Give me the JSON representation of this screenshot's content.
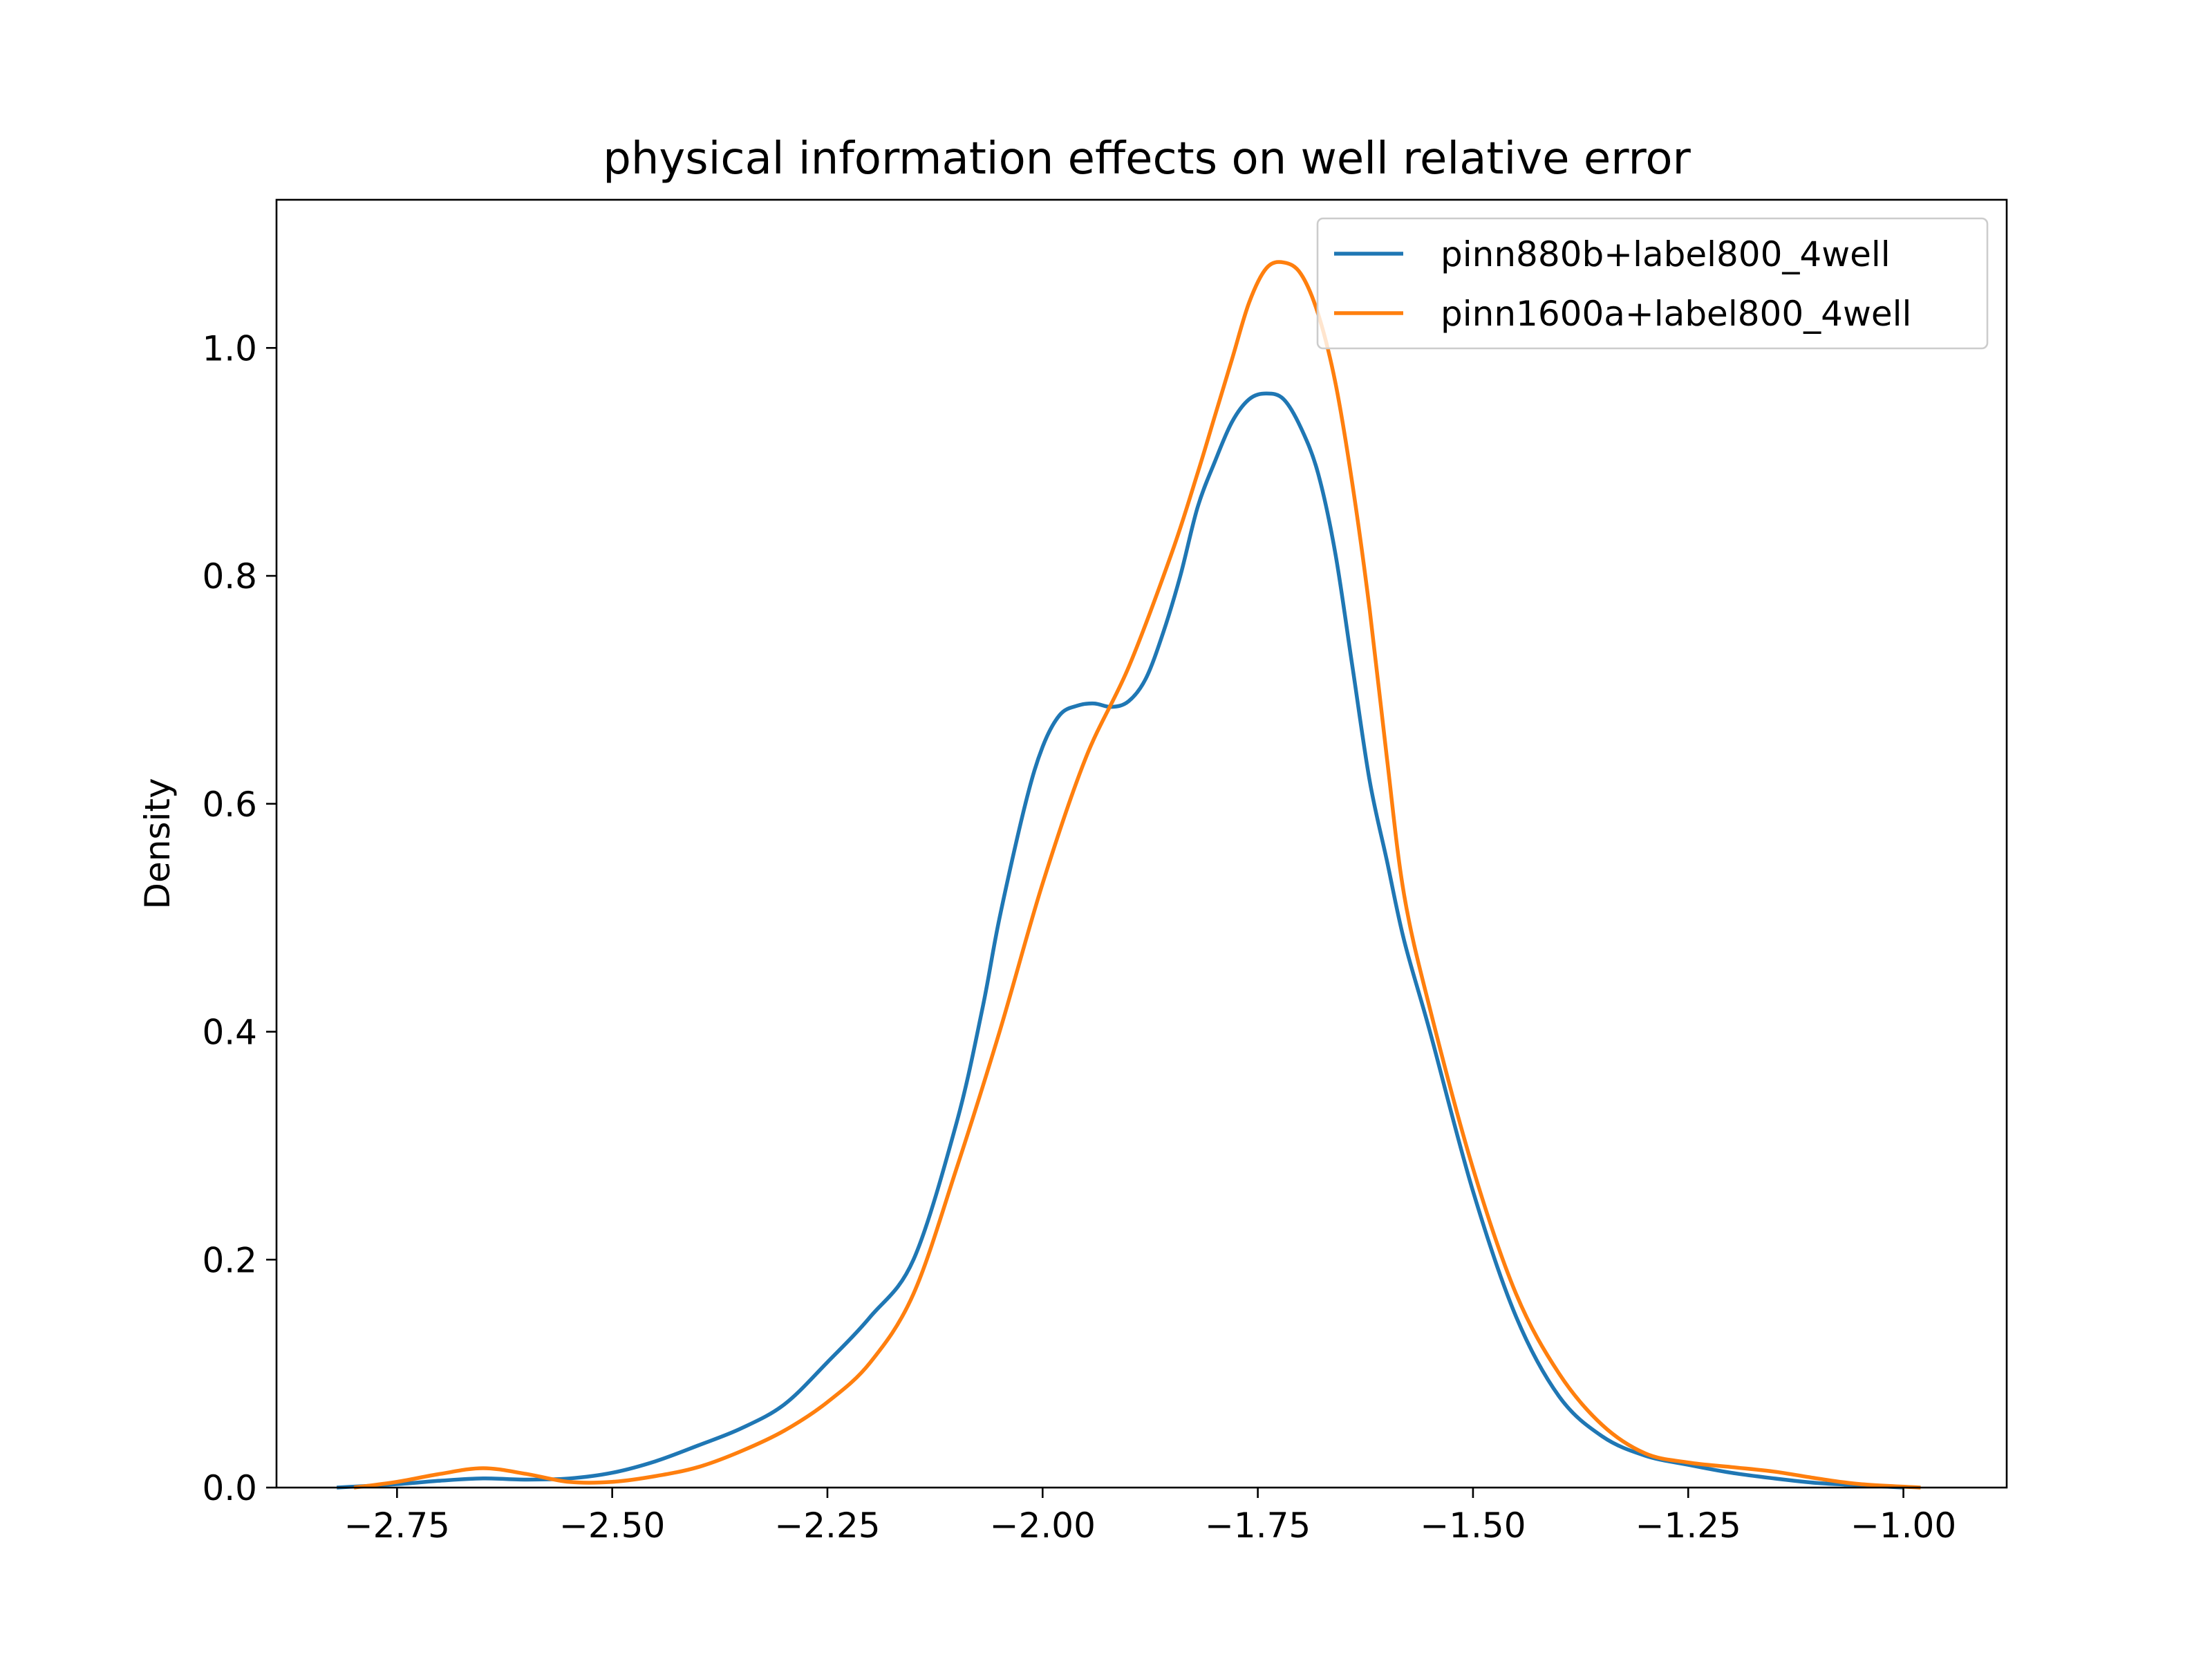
{
  "chart_data": {
    "type": "line",
    "title": "physical information effects on well relative error",
    "xlabel": "",
    "ylabel": "Density",
    "xlim": [
      -2.89,
      -0.88
    ],
    "ylim": [
      0.0,
      1.13
    ],
    "xticks": [
      -2.75,
      -2.5,
      -2.25,
      -2.0,
      -1.75,
      -1.5,
      -1.25,
      -1.0
    ],
    "xtick_labels": [
      "−2.75",
      "−2.50",
      "−2.25",
      "−2.00",
      "−1.75",
      "−1.50",
      "−1.25",
      "−1.00"
    ],
    "yticks": [
      0.0,
      0.2,
      0.4,
      0.6,
      0.8,
      1.0
    ],
    "ytick_labels": [
      "0.0",
      "0.2",
      "0.4",
      "0.6",
      "0.8",
      "1.0"
    ],
    "grid": false,
    "legend_position": "top-right",
    "series": [
      {
        "name": "pinn880b+label800_4well",
        "color": "#1f77b4",
        "x": [
          -2.82,
          -2.75,
          -2.7,
          -2.65,
          -2.6,
          -2.55,
          -2.5,
          -2.45,
          -2.4,
          -2.35,
          -2.3,
          -2.25,
          -2.2,
          -2.15,
          -2.1,
          -2.07,
          -2.05,
          -2.02,
          -2.0,
          -1.98,
          -1.96,
          -1.94,
          -1.92,
          -1.9,
          -1.88,
          -1.86,
          -1.84,
          -1.82,
          -1.8,
          -1.78,
          -1.76,
          -1.74,
          -1.72,
          -1.7,
          -1.68,
          -1.66,
          -1.64,
          -1.62,
          -1.6,
          -1.58,
          -1.55,
          -1.5,
          -1.45,
          -1.4,
          -1.35,
          -1.3,
          -1.25,
          -1.2,
          -1.15,
          -1.1,
          -1.05,
          -1.0
        ],
        "y": [
          0.0,
          0.003,
          0.006,
          0.008,
          0.007,
          0.008,
          0.013,
          0.023,
          0.037,
          0.052,
          0.073,
          0.11,
          0.15,
          0.2,
          0.32,
          0.42,
          0.5,
          0.6,
          0.65,
          0.678,
          0.686,
          0.688,
          0.685,
          0.69,
          0.71,
          0.75,
          0.8,
          0.86,
          0.9,
          0.935,
          0.955,
          0.96,
          0.955,
          0.93,
          0.89,
          0.82,
          0.72,
          0.62,
          0.55,
          0.48,
          0.4,
          0.26,
          0.15,
          0.08,
          0.045,
          0.028,
          0.02,
          0.013,
          0.008,
          0.004,
          0.002,
          0.0
        ]
      },
      {
        "name": "pinn1600a+label800_4well",
        "color": "#ff7f0e",
        "x": [
          -2.8,
          -2.75,
          -2.7,
          -2.65,
          -2.6,
          -2.55,
          -2.5,
          -2.45,
          -2.4,
          -2.35,
          -2.3,
          -2.25,
          -2.2,
          -2.15,
          -2.1,
          -2.05,
          -2.0,
          -1.95,
          -1.9,
          -1.85,
          -1.82,
          -1.8,
          -1.78,
          -1.76,
          -1.74,
          -1.72,
          -1.7,
          -1.68,
          -1.66,
          -1.64,
          -1.62,
          -1.6,
          -1.58,
          -1.55,
          -1.5,
          -1.45,
          -1.4,
          -1.35,
          -1.3,
          -1.25,
          -1.2,
          -1.15,
          -1.1,
          -1.05,
          -0.98
        ],
        "y": [
          0.0,
          0.005,
          0.012,
          0.017,
          0.012,
          0.005,
          0.005,
          0.01,
          0.018,
          0.032,
          0.05,
          0.075,
          0.11,
          0.17,
          0.28,
          0.4,
          0.53,
          0.64,
          0.72,
          0.82,
          0.89,
          0.94,
          0.99,
          1.04,
          1.07,
          1.075,
          1.065,
          1.03,
          0.97,
          0.88,
          0.77,
          0.64,
          0.52,
          0.42,
          0.28,
          0.17,
          0.1,
          0.055,
          0.03,
          0.022,
          0.018,
          0.014,
          0.008,
          0.003,
          0.0
        ]
      }
    ]
  }
}
